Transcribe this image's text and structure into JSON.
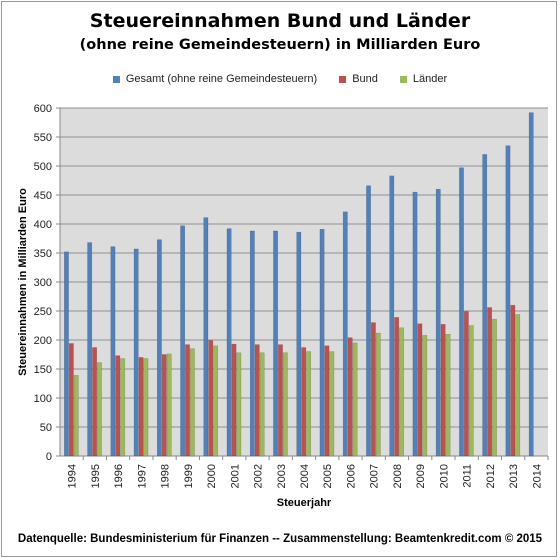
{
  "chart_data": {
    "type": "bar",
    "title": "Steuereinnahmen Bund und Länder",
    "subtitle": "(ohne reine Gemeindesteuern) in Milliarden Euro",
    "xlabel": "Steuerjahr",
    "ylabel": "Steuereinnahmen in Milliarden  Euro",
    "ylim": [
      0,
      600
    ],
    "yticks": [
      "0",
      "50",
      "100",
      "150",
      "200",
      "250",
      "300",
      "350",
      "400",
      "450",
      "500",
      "550",
      "600"
    ],
    "grid": true,
    "legend_position": "top",
    "categories": [
      "1994",
      "1995",
      "1996",
      "1997",
      "1998",
      "1999",
      "2000",
      "2001",
      "2002",
      "2003",
      "2004",
      "2005",
      "2006",
      "2007",
      "2008",
      "2009",
      "2010",
      "2011",
      "2012",
      "2013",
      "2014"
    ],
    "series": [
      {
        "name": "Gesamt (ohne reine Gemeindesteuern)",
        "color": "#4f81bd",
        "values": [
          352,
          368,
          361,
          357,
          373,
          397,
          411,
          392,
          388,
          388,
          386,
          391,
          421,
          466,
          483,
          455,
          460,
          497,
          520,
          535,
          592
        ]
      },
      {
        "name": "Bund",
        "color": "#c0504d",
        "values": [
          194,
          187,
          173,
          170,
          175,
          192,
          199,
          193,
          192,
          192,
          187,
          190,
          204,
          230,
          239,
          228,
          227,
          249,
          256,
          260,
          null
        ]
      },
      {
        "name": "Länder",
        "color": "#9bbb59",
        "values": [
          139,
          161,
          168,
          168,
          176,
          185,
          190,
          178,
          178,
          178,
          180,
          180,
          195,
          212,
          221,
          208,
          210,
          225,
          236,
          244,
          null
        ]
      }
    ]
  },
  "footer": {
    "text": "Datenquelle: Bundesministerium für Finanzen -- Zusammenstellung: Beamtenkredit.com  © 2015"
  }
}
